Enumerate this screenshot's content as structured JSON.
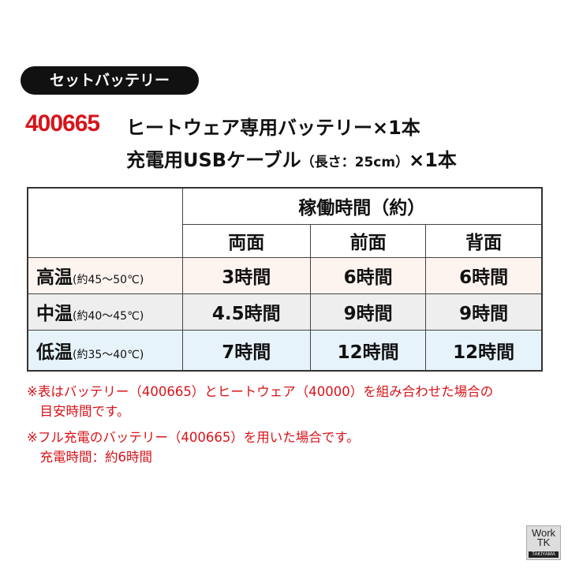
{
  "badge": "セットバッテリー",
  "product": {
    "code": "400665",
    "line1": "ヒートウェア専用バッテリー×1本",
    "line2_main": "充電用USBケーブル",
    "line2_paren": "（長さ：25cm）",
    "line2_end": "×1本"
  },
  "table": {
    "header": "稼働時間（約）",
    "columns": [
      "両面",
      "前面",
      "背面"
    ],
    "rows": [
      {
        "label": "高温",
        "range": "(約45～50℃)",
        "values": [
          "3時間",
          "6時間",
          "6時間"
        ]
      },
      {
        "label": "中温",
        "range": "(約40～45℃)",
        "values": [
          "4.5時間",
          "9時間",
          "9時間"
        ]
      },
      {
        "label": "低温",
        "range": "(約35～40℃)",
        "values": [
          "7時間",
          "12時間",
          "12時間"
        ]
      }
    ]
  },
  "notes": {
    "n1a": "※表はバッテリー（400665）とヒートウェア（40000）を組み合わせた場合の",
    "n1b": "　目安時間です。",
    "n2a": "※フル充電のバッテリー（400665）を用いた場合です。",
    "n2b": "　充電時間：約6時間"
  },
  "logo": {
    "l1": "Work",
    "l2": "TK",
    "l3": "TAKIYAMA"
  },
  "colors": {
    "accent": "#d7141a",
    "row_high": "#fdf4f0",
    "row_mid": "#eeeeee",
    "row_low": "#e7f3fb"
  }
}
